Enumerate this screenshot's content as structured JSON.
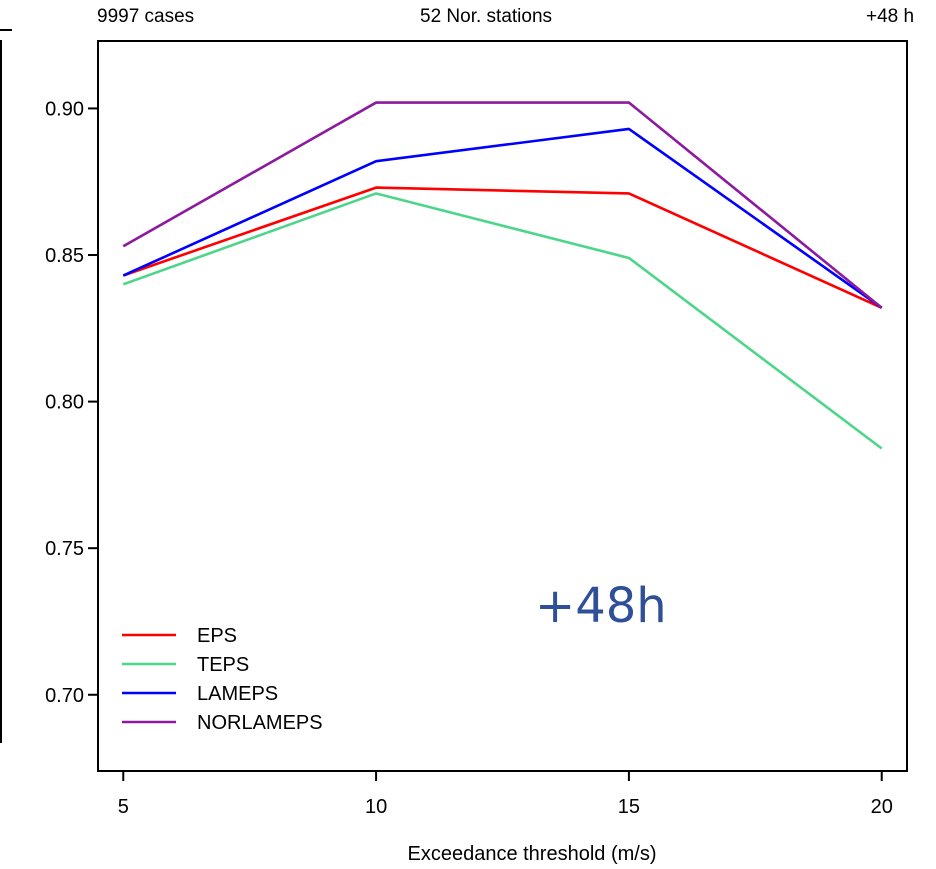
{
  "header": {
    "left": "9997 cases",
    "center": "52 Nor. stations",
    "right": "+48 h"
  },
  "overlay_label": "+48h",
  "chart_data": {
    "type": "line",
    "title": "",
    "xlabel": "Exceedance threshold (m/s)",
    "ylabel": "",
    "x": [
      5,
      10,
      15,
      20
    ],
    "xlim": [
      4.5,
      20.5
    ],
    "ylim": [
      0.674,
      0.923
    ],
    "xticks": [
      5,
      10,
      15,
      20
    ],
    "yticks": [
      0.7,
      0.75,
      0.8,
      0.85,
      0.9
    ],
    "ytick_labels": [
      "0.70",
      "0.75",
      "0.80",
      "0.85",
      "0.90"
    ],
    "grid": false,
    "legend_position": "bottom-left",
    "series": [
      {
        "name": "EPS",
        "color": "#ff0000",
        "values": [
          0.843,
          0.873,
          0.871,
          0.832
        ]
      },
      {
        "name": "TEPS",
        "color": "#4dd68a",
        "values": [
          0.84,
          0.871,
          0.849,
          0.784
        ]
      },
      {
        "name": "LAMEPS",
        "color": "#0000ff",
        "values": [
          0.843,
          0.882,
          0.893,
          0.832
        ]
      },
      {
        "name": "NORLAMEPS",
        "color": "#8b1a9e",
        "values": [
          0.853,
          0.902,
          0.902,
          0.832
        ]
      }
    ]
  }
}
